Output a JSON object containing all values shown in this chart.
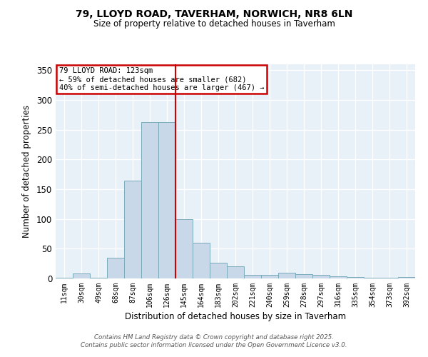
{
  "title_line1": "79, LLOYD ROAD, TAVERHAM, NORWICH, NR8 6LN",
  "title_line2": "Size of property relative to detached houses in Taverham",
  "xlabel": "Distribution of detached houses by size in Taverham",
  "ylabel": "Number of detached properties",
  "categories": [
    "11sqm",
    "30sqm",
    "49sqm",
    "68sqm",
    "87sqm",
    "106sqm",
    "126sqm",
    "145sqm",
    "164sqm",
    "183sqm",
    "202sqm",
    "221sqm",
    "240sqm",
    "259sqm",
    "278sqm",
    "297sqm",
    "316sqm",
    "335sqm",
    "354sqm",
    "373sqm",
    "392sqm"
  ],
  "values": [
    1,
    8,
    1,
    35,
    165,
    263,
    263,
    100,
    60,
    27,
    20,
    6,
    6,
    10,
    7,
    6,
    4,
    2,
    1,
    1,
    3
  ],
  "bar_color": "#c8d8e8",
  "bar_edgecolor": "#7aaabb",
  "annotation_title": "79 LLOYD ROAD: 123sqm",
  "annotation_line2": "← 59% of detached houses are smaller (682)",
  "annotation_line3": "40% of semi-detached houses are larger (467) →",
  "annotation_box_color": "#cc0000",
  "vline_color": "#cc0000",
  "vline_x": 6.5,
  "ylim": [
    0,
    360
  ],
  "yticks": [
    0,
    50,
    100,
    150,
    200,
    250,
    300,
    350
  ],
  "background_color": "#e8f0f8",
  "footer_line1": "Contains HM Land Registry data © Crown copyright and database right 2025.",
  "footer_line2": "Contains public sector information licensed under the Open Government Licence v3.0."
}
